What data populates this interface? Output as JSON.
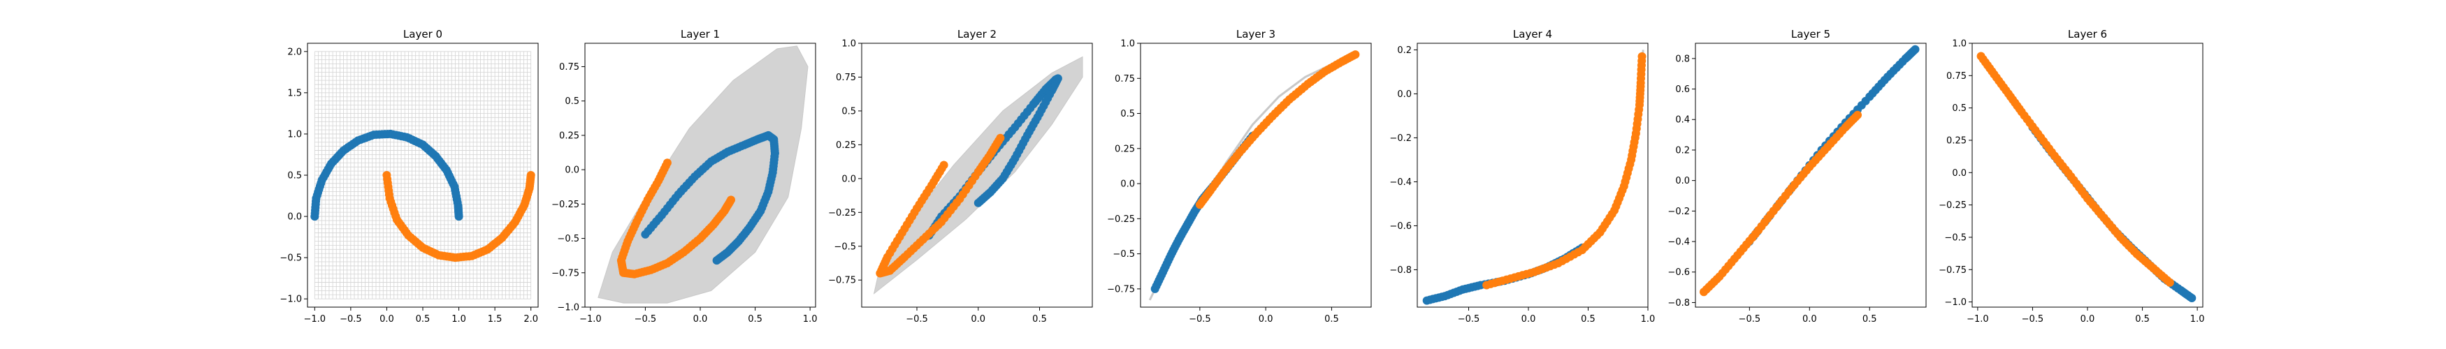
{
  "figure": {
    "background_color": "#ffffff",
    "series_colors": {
      "moon_a": "#1f77b4",
      "moon_b": "#ff7f0e",
      "grid": "#d3d3d3"
    }
  },
  "chart_data": [
    {
      "type": "scatter",
      "title": "Layer 0",
      "xlabel": "",
      "ylabel": "",
      "xlim": [
        -1.1,
        2.1
      ],
      "ylim": [
        -1.1,
        2.1
      ],
      "xticks": [
        -1.0,
        -0.5,
        0.0,
        0.5,
        1.0,
        1.5,
        2.0
      ],
      "yticks": [
        -1.0,
        -0.5,
        0.0,
        0.5,
        1.0,
        1.5,
        2.0
      ],
      "grid": "regular",
      "grid_range": {
        "x": [
          -1.0,
          2.0
        ],
        "y": [
          -1.0,
          2.0
        ]
      },
      "series": [
        {
          "color": "#1f77b4",
          "points": [
            [
              -1.0,
              0.0
            ],
            [
              -0.98,
              0.22
            ],
            [
              -0.9,
              0.44
            ],
            [
              -0.77,
              0.64
            ],
            [
              -0.6,
              0.8
            ],
            [
              -0.4,
              0.92
            ],
            [
              -0.18,
              0.99
            ],
            [
              0.05,
              1.0
            ],
            [
              0.28,
              0.96
            ],
            [
              0.5,
              0.87
            ],
            [
              0.68,
              0.73
            ],
            [
              0.83,
              0.56
            ],
            [
              0.94,
              0.36
            ],
            [
              0.99,
              0.13
            ],
            [
              1.0,
              0.0
            ]
          ]
        },
        {
          "color": "#ff7f0e",
          "points": [
            [
              0.0,
              0.5
            ],
            [
              0.04,
              0.22
            ],
            [
              0.14,
              -0.04
            ],
            [
              0.3,
              -0.23
            ],
            [
              0.5,
              -0.38
            ],
            [
              0.72,
              -0.47
            ],
            [
              0.95,
              -0.5
            ],
            [
              1.18,
              -0.48
            ],
            [
              1.4,
              -0.4
            ],
            [
              1.6,
              -0.26
            ],
            [
              1.78,
              -0.07
            ],
            [
              1.91,
              0.14
            ],
            [
              1.98,
              0.34
            ],
            [
              2.0,
              0.5
            ]
          ]
        }
      ]
    },
    {
      "type": "scatter",
      "title": "Layer 1",
      "xlabel": "",
      "ylabel": "",
      "xlim": [
        -1.05,
        1.05
      ],
      "ylim": [
        -1.0,
        0.92
      ],
      "xticks": [
        -1.0,
        -0.5,
        0.0,
        0.5,
        1.0
      ],
      "yticks": [
        -1.0,
        -0.75,
        -0.5,
        -0.25,
        0.0,
        0.25,
        0.5,
        0.75
      ],
      "grid": "warped",
      "grid_outline": [
        [
          -0.93,
          -0.93
        ],
        [
          -0.7,
          -0.97
        ],
        [
          -0.3,
          -0.97
        ],
        [
          0.1,
          -0.88
        ],
        [
          0.5,
          -0.6
        ],
        [
          0.8,
          -0.2
        ],
        [
          0.92,
          0.3
        ],
        [
          0.98,
          0.75
        ],
        [
          0.88,
          0.9
        ],
        [
          0.7,
          0.88
        ],
        [
          0.3,
          0.65
        ],
        [
          -0.1,
          0.3
        ],
        [
          -0.5,
          -0.2
        ],
        [
          -0.8,
          -0.6
        ]
      ],
      "series": [
        {
          "color": "#1f77b4",
          "points": [
            [
              -0.5,
              -0.47
            ],
            [
              -0.35,
              -0.33
            ],
            [
              -0.2,
              -0.18
            ],
            [
              -0.05,
              -0.05
            ],
            [
              0.1,
              0.06
            ],
            [
              0.25,
              0.13
            ],
            [
              0.4,
              0.18
            ],
            [
              0.52,
              0.22
            ],
            [
              0.62,
              0.25
            ],
            [
              0.67,
              0.22
            ],
            [
              0.68,
              0.12
            ],
            [
              0.66,
              -0.02
            ],
            [
              0.62,
              -0.16
            ],
            [
              0.55,
              -0.3
            ],
            [
              0.45,
              -0.42
            ],
            [
              0.35,
              -0.52
            ],
            [
              0.25,
              -0.6
            ],
            [
              0.15,
              -0.66
            ]
          ]
        },
        {
          "color": "#ff7f0e",
          "points": [
            [
              -0.3,
              0.05
            ],
            [
              -0.38,
              -0.08
            ],
            [
              -0.48,
              -0.22
            ],
            [
              -0.58,
              -0.38
            ],
            [
              -0.66,
              -0.52
            ],
            [
              -0.72,
              -0.66
            ],
            [
              -0.7,
              -0.75
            ],
            [
              -0.6,
              -0.76
            ],
            [
              -0.45,
              -0.73
            ],
            [
              -0.3,
              -0.68
            ],
            [
              -0.15,
              -0.6
            ],
            [
              0.0,
              -0.5
            ],
            [
              0.12,
              -0.4
            ],
            [
              0.22,
              -0.3
            ],
            [
              0.28,
              -0.22
            ]
          ]
        }
      ]
    },
    {
      "type": "scatter",
      "title": "Layer 2",
      "xlabel": "",
      "ylabel": "",
      "xlim": [
        -0.95,
        0.93
      ],
      "ylim": [
        -0.95,
        1.0
      ],
      "xticks": [
        -0.5,
        0.0,
        0.5
      ],
      "yticks": [
        -0.75,
        -0.5,
        -0.25,
        0.0,
        0.25,
        0.5,
        0.75,
        1.0
      ],
      "grid": "warped",
      "grid_outline": [
        [
          -0.85,
          -0.85
        ],
        [
          -0.5,
          -0.6
        ],
        [
          -0.1,
          -0.3
        ],
        [
          0.3,
          0.05
        ],
        [
          0.6,
          0.4
        ],
        [
          0.85,
          0.75
        ],
        [
          0.85,
          0.9
        ],
        [
          0.6,
          0.78
        ],
        [
          0.2,
          0.5
        ],
        [
          -0.2,
          0.1
        ],
        [
          -0.55,
          -0.3
        ],
        [
          -0.8,
          -0.65
        ]
      ],
      "series": [
        {
          "color": "#1f77b4",
          "points": [
            [
              -0.4,
              -0.42
            ],
            [
              -0.3,
              -0.28
            ],
            [
              -0.15,
              -0.13
            ],
            [
              0.0,
              0.05
            ],
            [
              0.15,
              0.22
            ],
            [
              0.3,
              0.38
            ],
            [
              0.45,
              0.55
            ],
            [
              0.55,
              0.66
            ],
            [
              0.63,
              0.73
            ],
            [
              0.65,
              0.74
            ],
            [
              0.6,
              0.65
            ],
            [
              0.5,
              0.48
            ],
            [
              0.4,
              0.32
            ],
            [
              0.3,
              0.15
            ],
            [
              0.2,
              0.0
            ],
            [
              0.1,
              -0.1
            ],
            [
              0.0,
              -0.18
            ]
          ]
        },
        {
          "color": "#ff7f0e",
          "points": [
            [
              -0.28,
              0.1
            ],
            [
              -0.38,
              -0.05
            ],
            [
              -0.5,
              -0.22
            ],
            [
              -0.62,
              -0.4
            ],
            [
              -0.74,
              -0.58
            ],
            [
              -0.8,
              -0.7
            ],
            [
              -0.72,
              -0.68
            ],
            [
              -0.6,
              -0.58
            ],
            [
              -0.45,
              -0.45
            ],
            [
              -0.3,
              -0.32
            ],
            [
              -0.15,
              -0.15
            ],
            [
              0.0,
              0.05
            ],
            [
              0.1,
              0.18
            ],
            [
              0.18,
              0.3
            ]
          ]
        }
      ]
    },
    {
      "type": "scatter",
      "title": "Layer 3",
      "xlabel": "",
      "ylabel": "",
      "xlim": [
        -0.95,
        0.8
      ],
      "ylim": [
        -0.88,
        1.0
      ],
      "xticks": [
        -0.5,
        0.0,
        0.5
      ],
      "yticks": [
        -0.75,
        -0.5,
        -0.25,
        0.0,
        0.25,
        0.5,
        0.75,
        1.0
      ],
      "grid": "curve",
      "grid_outline": [
        [
          -0.88,
          -0.83
        ],
        [
          -0.7,
          -0.48
        ],
        [
          -0.5,
          -0.15
        ],
        [
          -0.3,
          0.15
        ],
        [
          -0.1,
          0.42
        ],
        [
          0.1,
          0.62
        ],
        [
          0.3,
          0.76
        ],
        [
          0.5,
          0.85
        ],
        [
          0.7,
          0.93
        ]
      ],
      "series": [
        {
          "color": "#1f77b4",
          "points": [
            [
              -0.84,
              -0.75
            ],
            [
              -0.78,
              -0.63
            ],
            [
              -0.72,
              -0.51
            ],
            [
              -0.66,
              -0.4
            ],
            [
              -0.6,
              -0.3
            ],
            [
              -0.54,
              -0.2
            ],
            [
              -0.48,
              -0.11
            ],
            [
              -0.4,
              -0.02
            ],
            [
              -0.3,
              0.1
            ],
            [
              -0.2,
              0.22
            ],
            [
              -0.1,
              0.34
            ]
          ]
        },
        {
          "color": "#ff7f0e",
          "points": [
            [
              -0.5,
              -0.15
            ],
            [
              -0.42,
              -0.05
            ],
            [
              -0.32,
              0.08
            ],
            [
              -0.2,
              0.22
            ],
            [
              -0.08,
              0.35
            ],
            [
              0.05,
              0.48
            ],
            [
              0.18,
              0.6
            ],
            [
              0.32,
              0.71
            ],
            [
              0.45,
              0.8
            ],
            [
              0.58,
              0.87
            ],
            [
              0.68,
              0.92
            ]
          ]
        }
      ]
    },
    {
      "type": "scatter",
      "title": "Layer 4",
      "xlabel": "",
      "ylabel": "",
      "xlim": [
        -0.93,
        1.0
      ],
      "ylim": [
        -0.97,
        0.23
      ],
      "xticks": [
        -0.5,
        0.0,
        0.5,
        1.0
      ],
      "yticks": [
        -0.8,
        -0.6,
        -0.4,
        -0.2,
        0.0,
        0.2
      ],
      "grid": "curve",
      "grid_outline": [
        [
          -0.87,
          -0.94
        ],
        [
          -0.5,
          -0.88
        ],
        [
          0.0,
          -0.82
        ],
        [
          0.4,
          -0.73
        ],
        [
          0.7,
          -0.55
        ],
        [
          0.85,
          -0.3
        ],
        [
          0.92,
          -0.05
        ],
        [
          0.96,
          0.2
        ]
      ],
      "series": [
        {
          "color": "#1f77b4",
          "points": [
            [
              -0.85,
              -0.94
            ],
            [
              -0.7,
              -0.92
            ],
            [
              -0.55,
              -0.89
            ],
            [
              -0.4,
              -0.87
            ],
            [
              -0.2,
              -0.85
            ],
            [
              0.0,
              -0.82
            ],
            [
              0.15,
              -0.79
            ],
            [
              0.3,
              -0.75
            ],
            [
              0.45,
              -0.7
            ]
          ]
        },
        {
          "color": "#ff7f0e",
          "points": [
            [
              -0.35,
              -0.87
            ],
            [
              -0.15,
              -0.84
            ],
            [
              0.05,
              -0.81
            ],
            [
              0.25,
              -0.77
            ],
            [
              0.45,
              -0.71
            ],
            [
              0.6,
              -0.63
            ],
            [
              0.72,
              -0.53
            ],
            [
              0.8,
              -0.42
            ],
            [
              0.86,
              -0.3
            ],
            [
              0.9,
              -0.18
            ],
            [
              0.93,
              -0.05
            ],
            [
              0.94,
              0.05
            ],
            [
              0.95,
              0.17
            ]
          ]
        }
      ]
    },
    {
      "type": "scatter",
      "title": "Layer 5",
      "xlabel": "",
      "ylabel": "",
      "xlim": [
        -0.95,
        0.97
      ],
      "ylim": [
        -0.83,
        0.9
      ],
      "xticks": [
        -0.5,
        0.0,
        0.5
      ],
      "yticks": [
        -0.8,
        -0.6,
        -0.4,
        -0.2,
        0.0,
        0.2,
        0.4,
        0.6,
        0.8
      ],
      "grid": "none",
      "series": [
        {
          "color": "#1f77b4",
          "points": [
            [
              -0.5,
              -0.4
            ],
            [
              -0.3,
              -0.2
            ],
            [
              -0.1,
              0.0
            ],
            [
              0.1,
              0.2
            ],
            [
              0.3,
              0.38
            ],
            [
              0.5,
              0.55
            ],
            [
              0.65,
              0.68
            ],
            [
              0.8,
              0.8
            ],
            [
              0.88,
              0.86
            ]
          ]
        },
        {
          "color": "#ff7f0e",
          "points": [
            [
              -0.88,
              -0.73
            ],
            [
              -0.75,
              -0.63
            ],
            [
              -0.6,
              -0.49
            ],
            [
              -0.45,
              -0.35
            ],
            [
              -0.3,
              -0.2
            ],
            [
              -0.15,
              -0.05
            ],
            [
              0.0,
              0.09
            ],
            [
              0.15,
              0.22
            ],
            [
              0.3,
              0.35
            ],
            [
              0.4,
              0.43
            ]
          ]
        }
      ]
    },
    {
      "type": "scatter",
      "title": "Layer 6",
      "xlabel": "",
      "ylabel": "",
      "xlim": [
        -1.05,
        1.05
      ],
      "ylim": [
        -1.04,
        1.0
      ],
      "xticks": [
        -1.0,
        -0.5,
        0.0,
        0.5,
        1.0
      ],
      "yticks": [
        -1.0,
        -0.75,
        -0.5,
        -0.25,
        0.0,
        0.25,
        0.5,
        0.75,
        1.0
      ],
      "grid": "none",
      "series": [
        {
          "color": "#1f77b4",
          "points": [
            [
              -0.5,
              0.35
            ],
            [
              -0.35,
              0.18
            ],
            [
              -0.2,
              0.02
            ],
            [
              -0.05,
              -0.14
            ],
            [
              0.1,
              -0.3
            ],
            [
              0.25,
              -0.45
            ],
            [
              0.4,
              -0.58
            ],
            [
              0.55,
              -0.7
            ],
            [
              0.7,
              -0.82
            ],
            [
              0.85,
              -0.91
            ],
            [
              0.95,
              -0.97
            ]
          ]
        },
        {
          "color": "#ff7f0e",
          "points": [
            [
              -0.97,
              0.9
            ],
            [
              -0.85,
              0.76
            ],
            [
              -0.72,
              0.61
            ],
            [
              -0.6,
              0.47
            ],
            [
              -0.45,
              0.3
            ],
            [
              -0.3,
              0.13
            ],
            [
              -0.15,
              -0.03
            ],
            [
              0.0,
              -0.2
            ],
            [
              0.15,
              -0.35
            ],
            [
              0.3,
              -0.5
            ],
            [
              0.45,
              -0.63
            ],
            [
              0.6,
              -0.74
            ],
            [
              0.75,
              -0.85
            ]
          ]
        }
      ]
    }
  ]
}
